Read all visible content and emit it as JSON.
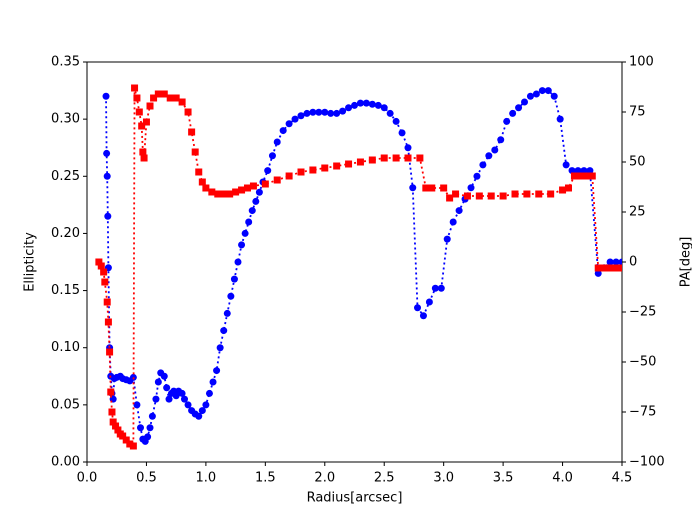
{
  "chart_data": {
    "type": "line",
    "xlabel": "Radius[arcsec]",
    "ylabel": "Ellipticity",
    "y2label": "PA[deg]",
    "xlim": [
      0,
      4.5
    ],
    "xticks": [
      {
        "value": 0,
        "label": "0.0"
      },
      0.5,
      {
        "value": 1,
        "label": "1.0"
      },
      1.5,
      {
        "value": 2,
        "label": "2.0"
      },
      2.5,
      {
        "value": 3,
        "label": "3.0"
      },
      3.5,
      {
        "value": 4,
        "label": "4.0"
      },
      4.5
    ],
    "ylim": [
      0,
      0.35
    ],
    "yticks": [
      {
        "value": 0,
        "label": "0.00"
      },
      {
        "value": 0.05,
        "label": "0.05"
      },
      {
        "value": 0.1,
        "label": "0.10"
      },
      {
        "value": 0.15,
        "label": "0.15"
      },
      {
        "value": 0.2,
        "label": "0.20"
      },
      {
        "value": 0.25,
        "label": "0.25"
      },
      {
        "value": 0.3,
        "label": "0.30"
      },
      {
        "value": 0.35,
        "label": "0.35"
      }
    ],
    "y2lim": [
      -100,
      100
    ],
    "y2ticks": [
      {
        "value": -100,
        "label": "−100"
      },
      {
        "value": -75,
        "label": "−75"
      },
      {
        "value": -50,
        "label": "−50"
      },
      {
        "value": -25,
        "label": "−25"
      },
      0,
      25,
      50,
      75,
      100
    ],
    "series": [
      {
        "color": "#0000ff",
        "marker": "circle",
        "axis": "y",
        "x": [
          0.16,
          0.165,
          0.17,
          0.175,
          0.18,
          0.19,
          0.2,
          0.21,
          0.22,
          0.23,
          0.25,
          0.28,
          0.3,
          0.33,
          0.36,
          0.39,
          0.42,
          0.45,
          0.47,
          0.49,
          0.51,
          0.53,
          0.55,
          0.58,
          0.6,
          0.62,
          0.65,
          0.67,
          0.69,
          0.71,
          0.73,
          0.75,
          0.77,
          0.8,
          0.82,
          0.85,
          0.88,
          0.91,
          0.94,
          0.97,
          1.0,
          1.03,
          1.06,
          1.09,
          1.12,
          1.15,
          1.18,
          1.21,
          1.24,
          1.27,
          1.3,
          1.33,
          1.36,
          1.39,
          1.42,
          1.45,
          1.48,
          1.52,
          1.56,
          1.6,
          1.65,
          1.7,
          1.75,
          1.8,
          1.85,
          1.9,
          1.95,
          2.0,
          2.05,
          2.1,
          2.15,
          2.2,
          2.25,
          2.3,
          2.35,
          2.4,
          2.45,
          2.5,
          2.55,
          2.6,
          2.65,
          2.7,
          2.74,
          2.78,
          2.83,
          2.88,
          2.93,
          2.98,
          3.03,
          3.08,
          3.13,
          3.18,
          3.23,
          3.28,
          3.33,
          3.38,
          3.43,
          3.48,
          3.53,
          3.58,
          3.63,
          3.68,
          3.73,
          3.78,
          3.83,
          3.88,
          3.93,
          3.98,
          4.03,
          4.08,
          4.13,
          4.18,
          4.23,
          4.3,
          4.35,
          4.4,
          4.45,
          4.5
        ],
        "values": [
          0.32,
          0.27,
          0.25,
          0.215,
          0.17,
          0.1,
          0.075,
          0.06,
          0.055,
          0.073,
          0.074,
          0.075,
          0.073,
          0.072,
          0.071,
          0.074,
          0.05,
          0.03,
          0.02,
          0.018,
          0.022,
          0.03,
          0.04,
          0.055,
          0.07,
          0.078,
          0.075,
          0.065,
          0.055,
          0.06,
          0.062,
          0.058,
          0.062,
          0.06,
          0.055,
          0.05,
          0.045,
          0.042,
          0.04,
          0.045,
          0.05,
          0.06,
          0.07,
          0.08,
          0.1,
          0.115,
          0.13,
          0.145,
          0.16,
          0.175,
          0.19,
          0.2,
          0.21,
          0.22,
          0.228,
          0.236,
          0.245,
          0.255,
          0.268,
          0.28,
          0.29,
          0.296,
          0.3,
          0.303,
          0.305,
          0.306,
          0.306,
          0.306,
          0.305,
          0.305,
          0.307,
          0.31,
          0.312,
          0.314,
          0.314,
          0.313,
          0.312,
          0.31,
          0.305,
          0.298,
          0.288,
          0.275,
          0.24,
          0.135,
          0.128,
          0.14,
          0.152,
          0.152,
          0.195,
          0.21,
          0.22,
          0.23,
          0.24,
          0.25,
          0.26,
          0.268,
          0.273,
          0.282,
          0.298,
          0.305,
          0.31,
          0.315,
          0.32,
          0.322,
          0.325,
          0.325,
          0.32,
          0.3,
          0.26,
          0.255,
          0.255,
          0.255,
          0.255,
          0.165,
          0.17,
          0.175,
          0.175,
          0.175
        ]
      },
      {
        "color": "#ff0000",
        "marker": "square",
        "axis": "y2",
        "x": [
          0.1,
          0.12,
          0.14,
          0.15,
          0.17,
          0.18,
          0.19,
          0.2,
          0.21,
          0.22,
          0.24,
          0.26,
          0.28,
          0.3,
          0.33,
          0.36,
          0.39,
          0.4,
          0.42,
          0.44,
          0.46,
          0.47,
          0.48,
          0.5,
          0.53,
          0.56,
          0.6,
          0.65,
          0.7,
          0.75,
          0.8,
          0.85,
          0.88,
          0.91,
          0.94,
          0.97,
          1.0,
          1.05,
          1.1,
          1.15,
          1.2,
          1.25,
          1.3,
          1.35,
          1.4,
          1.5,
          1.6,
          1.7,
          1.8,
          1.9,
          2.0,
          2.1,
          2.2,
          2.3,
          2.4,
          2.5,
          2.6,
          2.7,
          2.8,
          2.85,
          2.9,
          3.0,
          3.05,
          3.1,
          3.2,
          3.3,
          3.4,
          3.5,
          3.6,
          3.7,
          3.8,
          3.9,
          4.0,
          4.05,
          4.1,
          4.15,
          4.2,
          4.25,
          4.3,
          4.35,
          4.4,
          4.45,
          4.5
        ],
        "values": [
          0,
          -2,
          -5,
          -10,
          -20,
          -30,
          -45,
          -65,
          -75,
          -80,
          -82,
          -84,
          -86,
          -87,
          -89,
          -91,
          -92,
          87,
          82,
          75,
          68,
          55,
          52,
          70,
          78,
          82,
          84,
          84,
          82,
          82,
          80,
          75,
          65,
          55,
          45,
          40,
          37,
          35,
          34,
          34,
          34,
          35,
          36,
          37,
          38,
          39,
          41,
          43,
          45,
          46,
          47,
          48,
          49,
          50,
          51,
          52,
          52,
          52,
          52,
          37,
          37,
          37,
          32,
          34,
          33,
          33,
          33,
          33,
          34,
          34,
          34,
          34,
          36,
          37,
          43,
          43,
          43,
          43,
          -3,
          -3,
          -3,
          -3,
          -3
        ]
      }
    ]
  }
}
